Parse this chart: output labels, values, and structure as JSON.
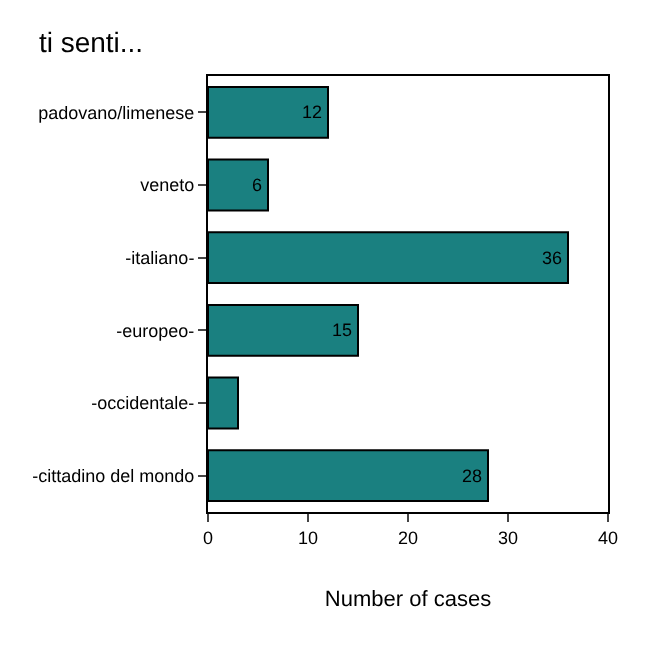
{
  "chart_data": {
    "type": "bar",
    "title": "ti senti...",
    "xlabel": "Number of cases",
    "orientation": "horizontal",
    "categories": [
      "padovano/limenese",
      "veneto",
      "-italiano-",
      "-europeo-",
      "-occidentale-",
      "-cittadino del mondo"
    ],
    "values": [
      12,
      6,
      36,
      15,
      3,
      28
    ],
    "value_labels": [
      "12",
      "6",
      "36",
      "15",
      null,
      "28"
    ],
    "color": "#1a8080",
    "xlim": [
      0,
      40
    ],
    "xticks": [
      0,
      10,
      20,
      30,
      40
    ],
    "grid": false
  }
}
